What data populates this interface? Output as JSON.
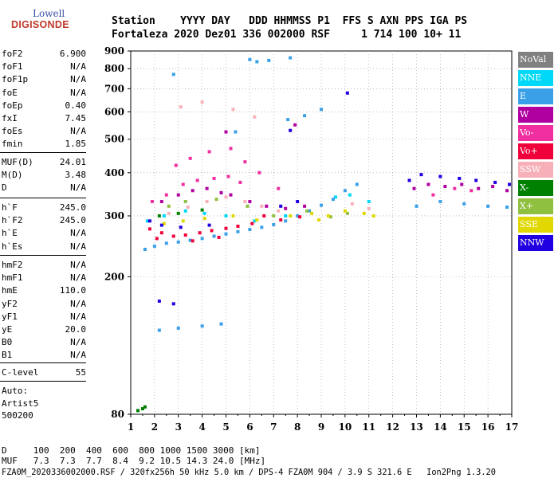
{
  "logo": {
    "line1": "Lowell",
    "line2": "DIGISONDE"
  },
  "header": {
    "row1": "Station    YYYY DAY   DDD HHMMSS P1  FFS S AXN PPS IGA PS",
    "row2": "Fortaleza 2020 Dez01 336 002000 RSF     1 714 100 10+ 11"
  },
  "params_group1": [
    {
      "name": "foF2",
      "value": "6.900"
    },
    {
      "name": "foF1",
      "value": "N/A"
    },
    {
      "name": "foF1p",
      "value": "N/A"
    },
    {
      "name": "foE",
      "value": "N/A"
    },
    {
      "name": "foEp",
      "value": "0.40"
    },
    {
      "name": "fxI",
      "value": "7.45"
    },
    {
      "name": "foEs",
      "value": "N/A"
    },
    {
      "name": "fmin",
      "value": "1.85"
    }
  ],
  "params_group2": [
    {
      "name": "MUF(D)",
      "value": "24.01"
    },
    {
      "name": "M(D)",
      "value": "3.48"
    },
    {
      "name": "D",
      "value": "N/A"
    }
  ],
  "params_group3": [
    {
      "name": "h`F",
      "value": "245.0"
    },
    {
      "name": "h`F2",
      "value": "245.0"
    },
    {
      "name": "h`E",
      "value": "N/A"
    },
    {
      "name": "h`Es",
      "value": "N/A"
    }
  ],
  "params_group4": [
    {
      "name": "hmF2",
      "value": "N/A"
    },
    {
      "name": "hmF1",
      "value": "N/A"
    },
    {
      "name": "hmE",
      "value": "110.0"
    },
    {
      "name": "yF2",
      "value": "N/A"
    },
    {
      "name": "yF1",
      "value": "N/A"
    },
    {
      "name": "yE",
      "value": "20.0"
    },
    {
      "name": "B0",
      "value": "N/A"
    },
    {
      "name": "B1",
      "value": "N/A"
    }
  ],
  "params_group5": [
    {
      "name": "C-level",
      "value": "55"
    }
  ],
  "auto": {
    "line1": "Auto:",
    "line2": "Artist5",
    "line3": "500200"
  },
  "legend": [
    {
      "label": "NoVal",
      "color": "#808080"
    },
    {
      "label": "NNE",
      "color": "#00d8f8"
    },
    {
      "label": "E",
      "color": "#3aa0e8"
    },
    {
      "label": "W",
      "color": "#b000a0"
    },
    {
      "label": "Vo-",
      "color": "#f030a0"
    },
    {
      "label": "Vo+",
      "color": "#f0003a"
    },
    {
      "label": "SSW",
      "color": "#f8b0b8"
    },
    {
      "label": "X-",
      "color": "#008000"
    },
    {
      "label": "X+",
      "color": "#90c040"
    },
    {
      "label": "SSE",
      "color": "#e0d800"
    },
    {
      "label": "NNW",
      "color": "#2000e0"
    }
  ],
  "footer": {
    "d_row": "D     100  200  400  600  800 1000 1500 3000 [km]",
    "muf_row": "MUF   7.3  7.3  7.7  8.4  9.2 10.5 14.3 24.0 [MHz]",
    "info": "FZA0M_2020336002000.RSF / 320fx256h 50 kHz 5.0 km / DPS-4 FZA0M 904 / 3.9 S 321.6 E   Ion2Png 1.3.20"
  },
  "chart_data": {
    "type": "scatter",
    "xlabel": "",
    "ylabel": "",
    "xlim": [
      1,
      17
    ],
    "ylim": [
      80,
      900
    ],
    "yscale": "log",
    "x_ticks": [
      1,
      2,
      3,
      4,
      5,
      6,
      7,
      8,
      9,
      10,
      11,
      12,
      13,
      14,
      15,
      16,
      17
    ],
    "y_ticks": [
      80,
      200,
      300,
      400,
      500,
      600,
      700,
      800,
      900
    ],
    "grid": true,
    "legend_position": "right",
    "series": [
      {
        "name": "NNE",
        "points": [
          [
            1.7,
            290
          ],
          [
            2.4,
            300
          ],
          [
            3.3,
            310
          ],
          [
            4.1,
            305
          ],
          [
            5.0,
            300
          ],
          [
            6.2,
            290
          ],
          [
            7.5,
            300
          ],
          [
            9.6,
            340
          ],
          [
            10.2,
            345
          ],
          [
            11.0,
            330
          ]
        ]
      },
      {
        "name": "E",
        "points": [
          [
            1.6,
            240
          ],
          [
            2.0,
            245
          ],
          [
            2.5,
            250
          ],
          [
            3.0,
            252
          ],
          [
            3.5,
            255
          ],
          [
            4.0,
            258
          ],
          [
            4.5,
            262
          ],
          [
            5.0,
            266
          ],
          [
            5.5,
            270
          ],
          [
            6.0,
            274
          ],
          [
            6.5,
            278
          ],
          [
            7.0,
            283
          ],
          [
            7.5,
            290
          ],
          [
            8.0,
            300
          ],
          [
            8.5,
            310
          ],
          [
            9.0,
            322
          ],
          [
            9.5,
            335
          ],
          [
            10.0,
            355
          ],
          [
            10.5,
            370
          ],
          [
            13.0,
            320
          ],
          [
            14.0,
            330
          ],
          [
            15.0,
            325
          ],
          [
            16.0,
            320
          ],
          [
            16.8,
            318
          ],
          [
            2.2,
            140
          ],
          [
            3.0,
            142
          ],
          [
            4.0,
            144
          ],
          [
            4.8,
            146
          ],
          [
            5.4,
            525
          ],
          [
            7.6,
            570
          ],
          [
            8.3,
            585
          ],
          [
            9.0,
            610
          ],
          [
            6.0,
            850
          ],
          [
            6.3,
            838
          ],
          [
            6.8,
            845
          ],
          [
            7.7,
            860
          ],
          [
            2.8,
            770
          ]
        ]
      },
      {
        "name": "W",
        "points": [
          [
            2.3,
            330
          ],
          [
            3.0,
            345
          ],
          [
            3.6,
            355
          ],
          [
            4.2,
            360
          ],
          [
            4.8,
            350
          ],
          [
            5.2,
            345
          ],
          [
            6.0,
            330
          ],
          [
            6.7,
            320
          ],
          [
            7.5,
            315
          ],
          [
            8.3,
            320
          ],
          [
            12.9,
            360
          ],
          [
            13.5,
            370
          ],
          [
            14.2,
            365
          ],
          [
            14.9,
            370
          ],
          [
            15.6,
            360
          ],
          [
            16.2,
            365
          ],
          [
            16.8,
            355
          ],
          [
            7.9,
            550
          ],
          [
            5.0,
            525
          ]
        ]
      },
      {
        "name": "Vo-",
        "points": [
          [
            1.9,
            330
          ],
          [
            2.5,
            345
          ],
          [
            3.2,
            370
          ],
          [
            3.8,
            380
          ],
          [
            4.5,
            385
          ],
          [
            5.1,
            390
          ],
          [
            5.6,
            375
          ],
          [
            2.9,
            420
          ],
          [
            3.5,
            440
          ],
          [
            4.3,
            460
          ],
          [
            5.2,
            470
          ],
          [
            5.8,
            430
          ],
          [
            6.4,
            400
          ],
          [
            7.2,
            360
          ],
          [
            13.7,
            345
          ],
          [
            14.6,
            360
          ],
          [
            15.3,
            355
          ]
        ]
      },
      {
        "name": "Vo+",
        "points": [
          [
            1.8,
            275
          ],
          [
            2.3,
            268
          ],
          [
            2.8,
            262
          ],
          [
            3.3,
            264
          ],
          [
            3.9,
            268
          ],
          [
            4.4,
            272
          ],
          [
            5.0,
            276
          ],
          [
            5.5,
            280
          ],
          [
            6.1,
            285
          ],
          [
            6.6,
            300
          ],
          [
            2.1,
            258
          ],
          [
            3.6,
            254
          ],
          [
            4.7,
            260
          ],
          [
            7.3,
            292
          ],
          [
            8.1,
            298
          ]
        ]
      },
      {
        "name": "SSW",
        "points": [
          [
            2.6,
            305
          ],
          [
            3.4,
            318
          ],
          [
            4.2,
            330
          ],
          [
            5.0,
            340
          ],
          [
            5.8,
            330
          ],
          [
            6.5,
            320
          ],
          [
            7.2,
            310
          ],
          [
            10.3,
            325
          ],
          [
            11.0,
            315
          ],
          [
            3.1,
            620
          ],
          [
            4.0,
            640
          ],
          [
            5.3,
            610
          ],
          [
            6.2,
            580
          ]
        ]
      },
      {
        "name": "X-",
        "points": [
          [
            1.3,
            82
          ],
          [
            1.5,
            83
          ],
          [
            1.6,
            84
          ],
          [
            2.2,
            300
          ],
          [
            3.0,
            305
          ],
          [
            4.0,
            312
          ]
        ]
      },
      {
        "name": "X+",
        "points": [
          [
            2.6,
            320
          ],
          [
            3.3,
            330
          ],
          [
            4.6,
            335
          ],
          [
            5.9,
            320
          ],
          [
            7.0,
            300
          ],
          [
            8.4,
            310
          ],
          [
            9.4,
            298
          ],
          [
            10.1,
            305
          ]
        ]
      },
      {
        "name": "SSE",
        "points": [
          [
            2.4,
            285
          ],
          [
            3.2,
            290
          ],
          [
            4.1,
            295
          ],
          [
            5.3,
            300
          ],
          [
            6.3,
            292
          ],
          [
            7.7,
            300
          ],
          [
            8.6,
            305
          ],
          [
            9.3,
            300
          ],
          [
            10.0,
            310
          ],
          [
            10.8,
            305
          ],
          [
            11.2,
            300
          ],
          [
            8.9,
            292
          ]
        ]
      },
      {
        "name": "NNW",
        "points": [
          [
            1.8,
            290
          ],
          [
            2.3,
            282
          ],
          [
            3.1,
            278
          ],
          [
            4.3,
            282
          ],
          [
            7.3,
            320
          ],
          [
            8.0,
            330
          ],
          [
            12.7,
            380
          ],
          [
            13.2,
            395
          ],
          [
            14.0,
            390
          ],
          [
            14.8,
            385
          ],
          [
            15.5,
            380
          ],
          [
            16.3,
            375
          ],
          [
            16.9,
            370
          ],
          [
            7.7,
            530
          ],
          [
            10.1,
            680
          ],
          [
            2.2,
            170
          ],
          [
            2.8,
            167
          ]
        ]
      }
    ]
  }
}
